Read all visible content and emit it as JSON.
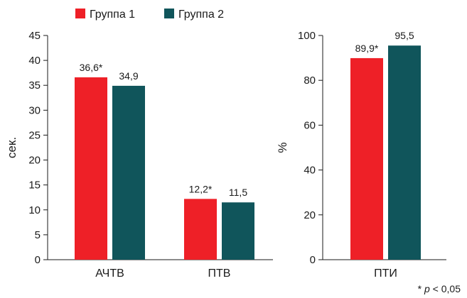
{
  "legend": [
    {
      "name": "Группа 1",
      "color": "#ee2027"
    },
    {
      "name": "Группа 2",
      "color": "#10555b"
    }
  ],
  "footnote": {
    "star": "* ",
    "p": "p",
    "rest": " < 0,05"
  },
  "chart_data": [
    {
      "type": "bar",
      "ylabel": "сек.",
      "ylim": [
        0,
        45
      ],
      "yticks": [
        "0",
        "5",
        "10",
        "15",
        "20",
        "25",
        "30",
        "35",
        "40",
        "45"
      ],
      "categories": [
        "АЧТВ",
        "ПТВ"
      ],
      "series": [
        {
          "name": "Группа 1",
          "values": [
            36.6,
            12.2
          ],
          "labels": [
            "36,6*",
            "12,2*"
          ]
        },
        {
          "name": "Группа 2",
          "values": [
            34.9,
            11.5
          ],
          "labels": [
            "34,9",
            "11,5"
          ]
        }
      ],
      "grid": false
    },
    {
      "type": "bar",
      "ylabel": "%",
      "ylim": [
        0,
        100
      ],
      "yticks": [
        "0",
        "20",
        "40",
        "60",
        "80",
        "100"
      ],
      "categories": [
        "ПТИ"
      ],
      "series": [
        {
          "name": "Группа 1",
          "values": [
            89.9
          ],
          "labels": [
            "89,9*"
          ]
        },
        {
          "name": "Группа 2",
          "values": [
            95.5
          ],
          "labels": [
            "95,5"
          ]
        }
      ],
      "grid": false
    }
  ]
}
